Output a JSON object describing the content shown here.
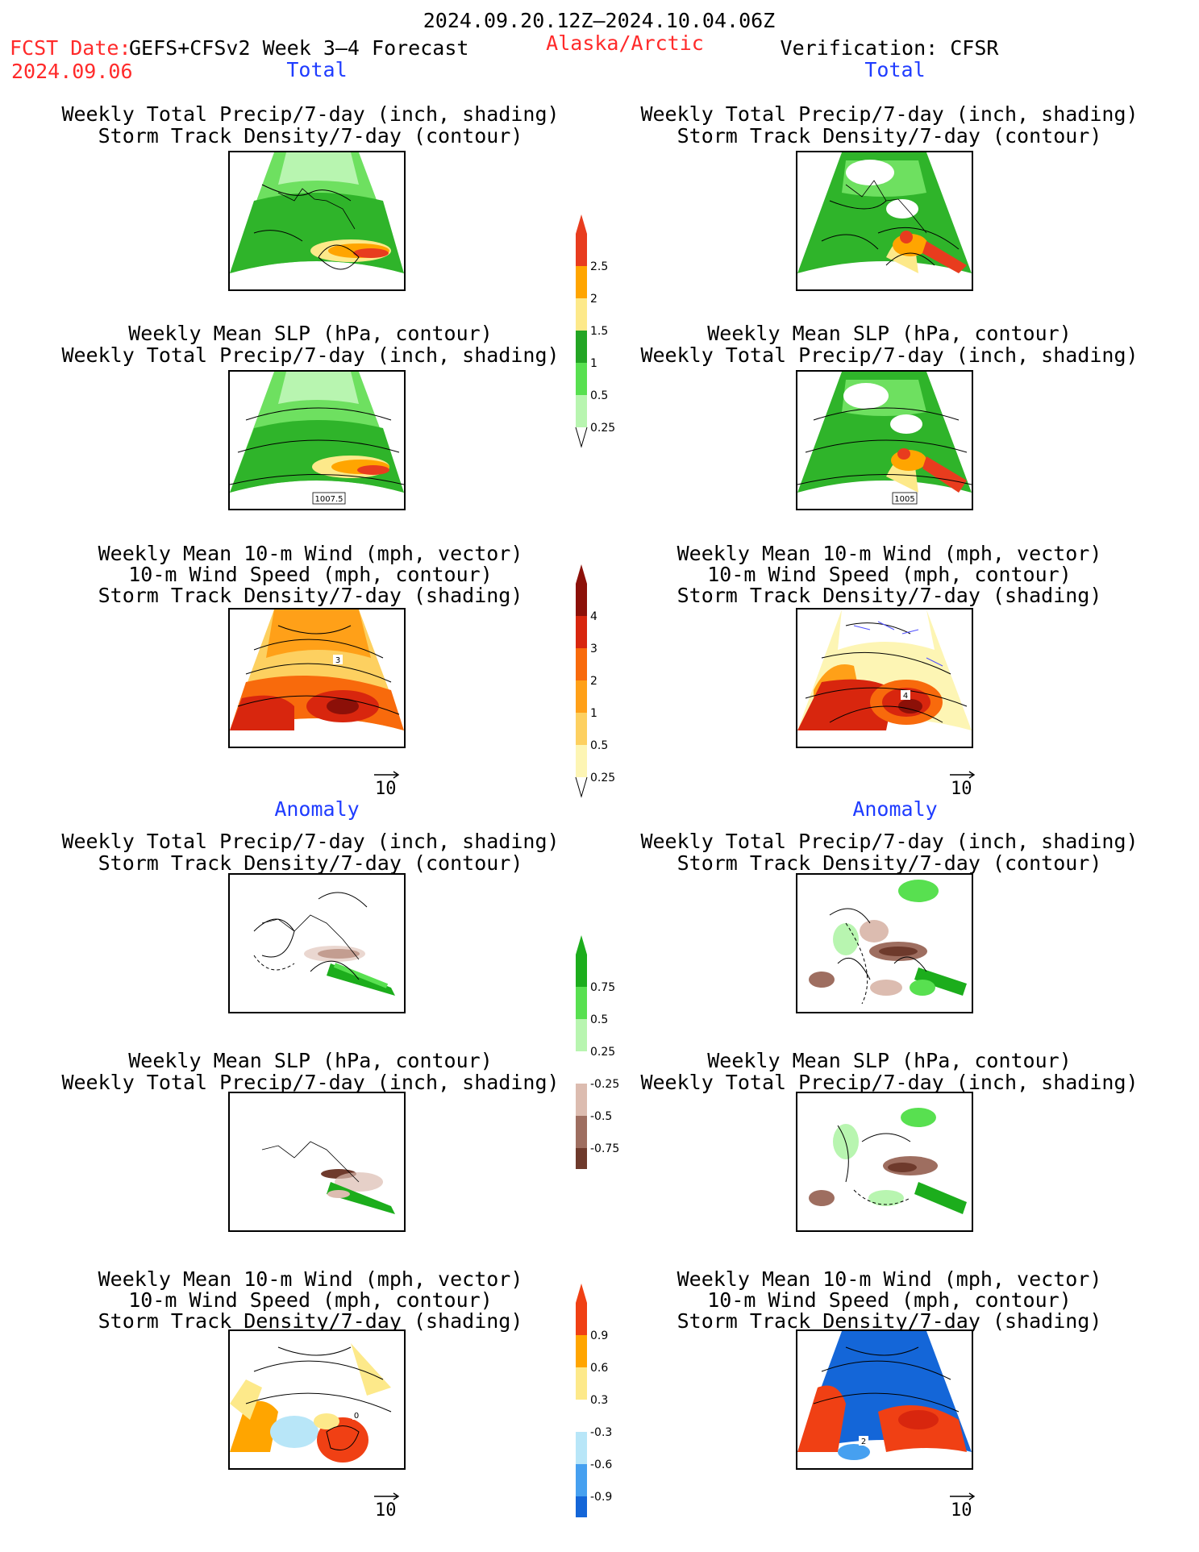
{
  "header": {
    "date_range": "2024.09.20.12Z–2024.10.04.06Z",
    "fcst_label": "FCST Date:",
    "fcst_product": "GEFS+CFSv2 Week 3–4 Forecast",
    "fcst_date": "2024.09.06",
    "region": "Alaska/Arctic",
    "verification": "Verification: CFSR"
  },
  "sections": {
    "total": "Total",
    "anomaly": "Anomaly"
  },
  "titles": {
    "precip_storm": [
      "Weekly Total Precip/7-day (inch, shading)",
      "Storm Track Density/7-day (contour)"
    ],
    "slp_precip": [
      "Weekly Mean SLP (hPa, contour)",
      "Weekly Total Precip/7-day (inch, shading)"
    ],
    "wind_storm": [
      "Weekly Mean 10-m Wind (mph, vector)",
      "10-m Wind Speed (mph, contour)",
      "Storm Track Density/7-day (shading)"
    ]
  },
  "panel_labels": {
    "left_slp_total": "1007.5",
    "right_slp_total": "1005",
    "left_wind_total": "3",
    "right_wind_total": "4",
    "left_wind_anom": "0",
    "right_wind_anom": "2"
  },
  "vector_ref": "10",
  "colorbars": {
    "precip_total": {
      "colors": [
        "#b8f5b0",
        "#58e050",
        "#23a524",
        "#fde98a",
        "#ffa500",
        "#e83c1e"
      ],
      "labels": [
        "0.25",
        "0.5",
        "1",
        "1.5",
        "2",
        "2.5"
      ]
    },
    "storm_total": {
      "colors": [
        "#fdf5b4",
        "#fdd060",
        "#ffa018",
        "#f86a0c",
        "#d8260e",
        "#8c1008"
      ],
      "labels": [
        "0.25",
        "0.5",
        "1",
        "2",
        "3",
        "4"
      ]
    },
    "precip_anom": {
      "colors": [
        "#6e3a2c",
        "#9e6e60",
        "#dcbcb0",
        "#ffffff",
        "#b8f5b0",
        "#58e050",
        "#1cad1c"
      ],
      "labels": [
        "-0.75",
        "-0.5",
        "-0.25",
        "0.25",
        "0.5",
        "0.75"
      ]
    },
    "storm_anom": {
      "colors": [
        "#1466d8",
        "#46a0f0",
        "#b8e6f8",
        "#ffffff",
        "#fde98a",
        "#ffa500",
        "#f04014"
      ],
      "labels": [
        "-0.9",
        "-0.6",
        "-0.3",
        "0.3",
        "0.6",
        "0.9"
      ]
    }
  }
}
